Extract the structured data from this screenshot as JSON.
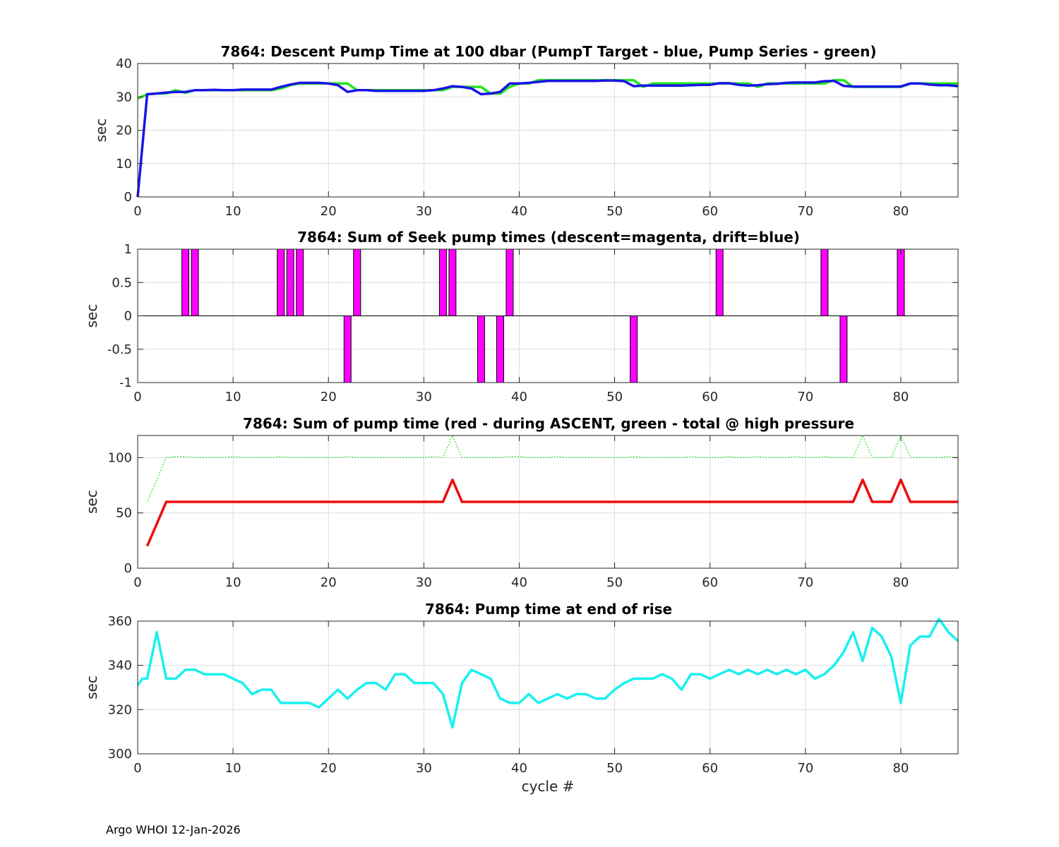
{
  "footer": "Argo WHOI 12-Jan-2026",
  "colors": {
    "green": "#22e61e",
    "blue": "#1a14e6",
    "magenta": "#ff00ff",
    "red": "#ee0b0b",
    "cyan": "#19f0f0",
    "grid": "#dcdcdc"
  },
  "chart_data": [
    {
      "type": "line",
      "title": "7864: Descent Pump Time at 100 dbar (PumpT Target - blue, Pump Series - green)",
      "xlabel": "",
      "ylabel": "sec",
      "xlim": [
        0,
        86
      ],
      "ylim": [
        0,
        40
      ],
      "xticks": [
        0,
        10,
        20,
        30,
        40,
        50,
        60,
        70,
        80
      ],
      "yticks": [
        0,
        10,
        20,
        30,
        40
      ],
      "yticklabels": [
        "0",
        "10",
        "20",
        "30",
        "40"
      ],
      "grid": true,
      "series": [
        {
          "name": "Pump Series",
          "color": "green",
          "style": "solid",
          "x": [
            0,
            1,
            2,
            3,
            4,
            5,
            6,
            7,
            8,
            9,
            10,
            11,
            12,
            13,
            14,
            15,
            16,
            17,
            18,
            19,
            20,
            21,
            22,
            23,
            24,
            25,
            26,
            27,
            28,
            29,
            30,
            31,
            32,
            33,
            34,
            35,
            36,
            37,
            38,
            39,
            40,
            41,
            42,
            43,
            44,
            45,
            46,
            47,
            48,
            49,
            50,
            51,
            52,
            53,
            54,
            55,
            56,
            57,
            58,
            59,
            60,
            61,
            62,
            63,
            64,
            65,
            66,
            67,
            68,
            69,
            70,
            71,
            72,
            73,
            74,
            75,
            76,
            77,
            78,
            79,
            80,
            81,
            82,
            83,
            84,
            85,
            86
          ],
          "values": [
            29.5,
            30.8,
            31,
            31,
            32,
            31.2,
            32,
            32,
            32,
            32,
            32,
            32,
            32,
            32,
            32,
            32.5,
            33.5,
            34,
            34,
            34,
            34,
            34,
            34,
            32,
            32,
            32,
            32,
            32,
            32,
            32,
            32,
            32,
            32,
            33,
            33,
            33,
            33,
            31,
            31,
            33,
            34,
            34,
            35,
            35,
            35,
            35,
            35,
            35,
            35,
            35,
            35,
            35,
            35,
            33,
            34,
            34,
            34,
            34,
            34,
            34,
            34,
            34,
            34,
            34,
            34,
            33,
            34,
            34,
            34,
            34,
            34,
            34,
            34,
            35,
            35,
            33,
            33,
            33,
            33,
            33,
            33,
            34,
            34,
            34,
            34,
            34,
            34
          ]
        },
        {
          "name": "PumpT Target",
          "color": "blue",
          "style": "solid",
          "x": [
            0,
            1,
            2,
            3,
            4,
            5,
            6,
            7,
            8,
            9,
            10,
            11,
            12,
            13,
            14,
            15,
            16,
            17,
            18,
            19,
            20,
            21,
            22,
            23,
            24,
            25,
            26,
            27,
            28,
            29,
            30,
            31,
            32,
            33,
            34,
            35,
            36,
            37,
            38,
            39,
            40,
            41,
            42,
            43,
            44,
            45,
            46,
            47,
            48,
            49,
            50,
            51,
            52,
            53,
            54,
            55,
            56,
            57,
            58,
            59,
            60,
            61,
            62,
            63,
            64,
            65,
            66,
            67,
            68,
            69,
            70,
            71,
            72,
            73,
            74,
            75,
            76,
            77,
            78,
            79,
            80,
            81,
            82,
            83,
            84,
            85,
            86
          ],
          "values": [
            0,
            30.8,
            31,
            31.3,
            31.5,
            31.5,
            32,
            32,
            32.1,
            32,
            32,
            32.2,
            32.2,
            32.2,
            32.2,
            33,
            33.7,
            34.2,
            34.2,
            34.2,
            34,
            33.5,
            31.5,
            32,
            32,
            31.8,
            31.8,
            31.8,
            31.8,
            31.8,
            31.8,
            32,
            32.5,
            33.2,
            33,
            32.5,
            30.8,
            31,
            31.5,
            34,
            34,
            34.2,
            34.5,
            34.8,
            34.8,
            34.8,
            34.8,
            34.8,
            34.8,
            34.9,
            34.9,
            34.7,
            33.2,
            33.4,
            33.4,
            33.4,
            33.4,
            33.4,
            33.5,
            33.6,
            33.6,
            34.1,
            34.1,
            33.6,
            33.4,
            33.5,
            33.8,
            33.9,
            34.2,
            34.3,
            34.3,
            34.3,
            34.7,
            34.8,
            33.3,
            33.1,
            33.1,
            33.1,
            33.1,
            33.1,
            33.1,
            34,
            34,
            33.7,
            33.5,
            33.5,
            33.2
          ]
        }
      ]
    },
    {
      "type": "bar",
      "title": "7864: Sum of Seek pump times (descent=magenta, drift=blue)",
      "xlabel": "",
      "ylabel": "sec",
      "xlim": [
        0,
        86
      ],
      "ylim": [
        -1,
        1
      ],
      "xticks": [
        0,
        10,
        20,
        30,
        40,
        50,
        60,
        70,
        80
      ],
      "yticks": [
        -1,
        -0.5,
        0,
        0.5,
        1
      ],
      "yticklabels": [
        "-1",
        "-0.5",
        "0",
        "0.5",
        "1"
      ],
      "grid": true,
      "series": [
        {
          "name": "descent",
          "color": "magenta",
          "x": [
            5,
            6,
            15,
            16,
            17,
            22,
            23,
            32,
            33,
            36,
            38,
            39,
            52,
            61,
            72,
            74,
            80
          ],
          "values": [
            1,
            1,
            1,
            1,
            1,
            -1,
            1,
            1,
            1,
            -1,
            -1,
            1,
            -1,
            1,
            1,
            -1,
            1
          ]
        }
      ]
    },
    {
      "type": "line",
      "title": "7864: Sum of pump time (red - during ASCENT, green - total @ high pressure",
      "xlabel": "",
      "ylabel": "sec",
      "xlim": [
        0,
        86
      ],
      "ylim": [
        0,
        120
      ],
      "xticks": [
        0,
        10,
        20,
        30,
        40,
        50,
        60,
        70,
        80
      ],
      "yticks": [
        0,
        50,
        100
      ],
      "yticklabels": [
        "0",
        "50",
        "100"
      ],
      "grid": true,
      "series": [
        {
          "name": "total @ high pressure",
          "color": "green",
          "style": "dotted",
          "x": [
            1,
            2,
            3,
            4,
            5,
            6,
            7,
            8,
            9,
            10,
            11,
            12,
            13,
            14,
            15,
            16,
            17,
            18,
            19,
            20,
            21,
            22,
            23,
            24,
            25,
            26,
            27,
            28,
            29,
            30,
            31,
            32,
            33,
            34,
            35,
            36,
            37,
            38,
            39,
            40,
            41,
            42,
            43,
            44,
            45,
            46,
            47,
            48,
            49,
            50,
            51,
            52,
            53,
            54,
            55,
            56,
            57,
            58,
            59,
            60,
            61,
            62,
            63,
            64,
            65,
            66,
            67,
            68,
            69,
            70,
            71,
            72,
            73,
            74,
            75,
            76,
            77,
            78,
            79,
            80,
            81,
            82,
            83,
            84,
            85,
            86
          ],
          "values": [
            60,
            80,
            100,
            101,
            101,
            100,
            100,
            100,
            100,
            101,
            100,
            100,
            100,
            100,
            101,
            100,
            100,
            100,
            100,
            100,
            100,
            101,
            100,
            100,
            100,
            100,
            100,
            100,
            100,
            100,
            101,
            100,
            120,
            100,
            100,
            100,
            100,
            100,
            101,
            101,
            100,
            100,
            100,
            101,
            100,
            100,
            100,
            100,
            100,
            100,
            100,
            101,
            100,
            100,
            100,
            100,
            100,
            101,
            100,
            100,
            100,
            101,
            100,
            100,
            101,
            100,
            100,
            100,
            101,
            100,
            100,
            101,
            100,
            100,
            100,
            120,
            100,
            100,
            100,
            120,
            100,
            100,
            100,
            100,
            101,
            100
          ]
        },
        {
          "name": "during ASCENT",
          "color": "red",
          "style": "solid",
          "x": [
            1,
            2,
            3,
            4,
            5,
            6,
            7,
            8,
            9,
            10,
            11,
            12,
            13,
            14,
            15,
            16,
            17,
            18,
            19,
            20,
            21,
            22,
            23,
            24,
            25,
            26,
            27,
            28,
            29,
            30,
            31,
            32,
            33,
            34,
            35,
            36,
            37,
            38,
            39,
            40,
            41,
            42,
            43,
            44,
            45,
            46,
            47,
            48,
            49,
            50,
            51,
            52,
            53,
            54,
            55,
            56,
            57,
            58,
            59,
            60,
            61,
            62,
            63,
            64,
            65,
            66,
            67,
            68,
            69,
            70,
            71,
            72,
            73,
            74,
            75,
            76,
            77,
            78,
            79,
            80,
            81,
            82,
            83,
            84,
            85,
            86
          ],
          "values": [
            20,
            40,
            60,
            60,
            60,
            60,
            60,
            60,
            60,
            60,
            60,
            60,
            60,
            60,
            60,
            60,
            60,
            60,
            60,
            60,
            60,
            60,
            60,
            60,
            60,
            60,
            60,
            60,
            60,
            60,
            60,
            60,
            80,
            60,
            60,
            60,
            60,
            60,
            60,
            60,
            60,
            60,
            60,
            60,
            60,
            60,
            60,
            60,
            60,
            60,
            60,
            60,
            60,
            60,
            60,
            60,
            60,
            60,
            60,
            60,
            60,
            60,
            60,
            60,
            60,
            60,
            60,
            60,
            60,
            60,
            60,
            60,
            60,
            60,
            60,
            80,
            60,
            60,
            60,
            80,
            60,
            60,
            60,
            60,
            60,
            60
          ]
        }
      ]
    },
    {
      "type": "line",
      "title": "7864: Pump time at end of rise",
      "xlabel": "cycle #",
      "ylabel": "sec",
      "xlim": [
        0,
        86
      ],
      "ylim": [
        300,
        360
      ],
      "xticks": [
        0,
        10,
        20,
        30,
        40,
        50,
        60,
        70,
        80
      ],
      "yticks": [
        300,
        320,
        340,
        360
      ],
      "yticklabels": [
        "300",
        "320",
        "340",
        "360"
      ],
      "grid": true,
      "series": [
        {
          "name": "Pump time at end of rise",
          "color": "cyan",
          "style": "solid",
          "x": [
            0,
            0.5,
            1,
            2,
            3,
            4,
            5,
            6,
            7,
            8,
            9,
            10,
            11,
            12,
            13,
            14,
            15,
            16,
            17,
            18,
            19,
            20,
            21,
            22,
            23,
            24,
            25,
            26,
            27,
            28,
            29,
            30,
            31,
            32,
            33,
            34,
            35,
            36,
            37,
            38,
            39,
            40,
            41,
            42,
            43,
            44,
            45,
            46,
            47,
            48,
            49,
            50,
            51,
            52,
            53,
            54,
            55,
            56,
            57,
            58,
            59,
            60,
            61,
            62,
            63,
            64,
            65,
            66,
            67,
            68,
            69,
            70,
            71,
            72,
            73,
            74,
            75,
            76,
            77,
            78,
            79,
            80,
            81,
            82,
            83,
            84,
            85,
            86
          ],
          "values": [
            331,
            334,
            334,
            355,
            334,
            334,
            338,
            338,
            336,
            336,
            336,
            334,
            332,
            327,
            329,
            329,
            323,
            323,
            323,
            323,
            321,
            325,
            329,
            325,
            329,
            332,
            332,
            329,
            336,
            336,
            332,
            332,
            332,
            327,
            312,
            332,
            338,
            336,
            334,
            325,
            323,
            323,
            327,
            323,
            325,
            327,
            325,
            327,
            327,
            325,
            325,
            329,
            332,
            334,
            334,
            334,
            336,
            334,
            329,
            336,
            336,
            334,
            336,
            338,
            336,
            338,
            336,
            338,
            336,
            338,
            336,
            338,
            334,
            336,
            340,
            346,
            355,
            342,
            357,
            353,
            344,
            323,
            349,
            353,
            353,
            361,
            355,
            351
          ]
        }
      ]
    }
  ]
}
